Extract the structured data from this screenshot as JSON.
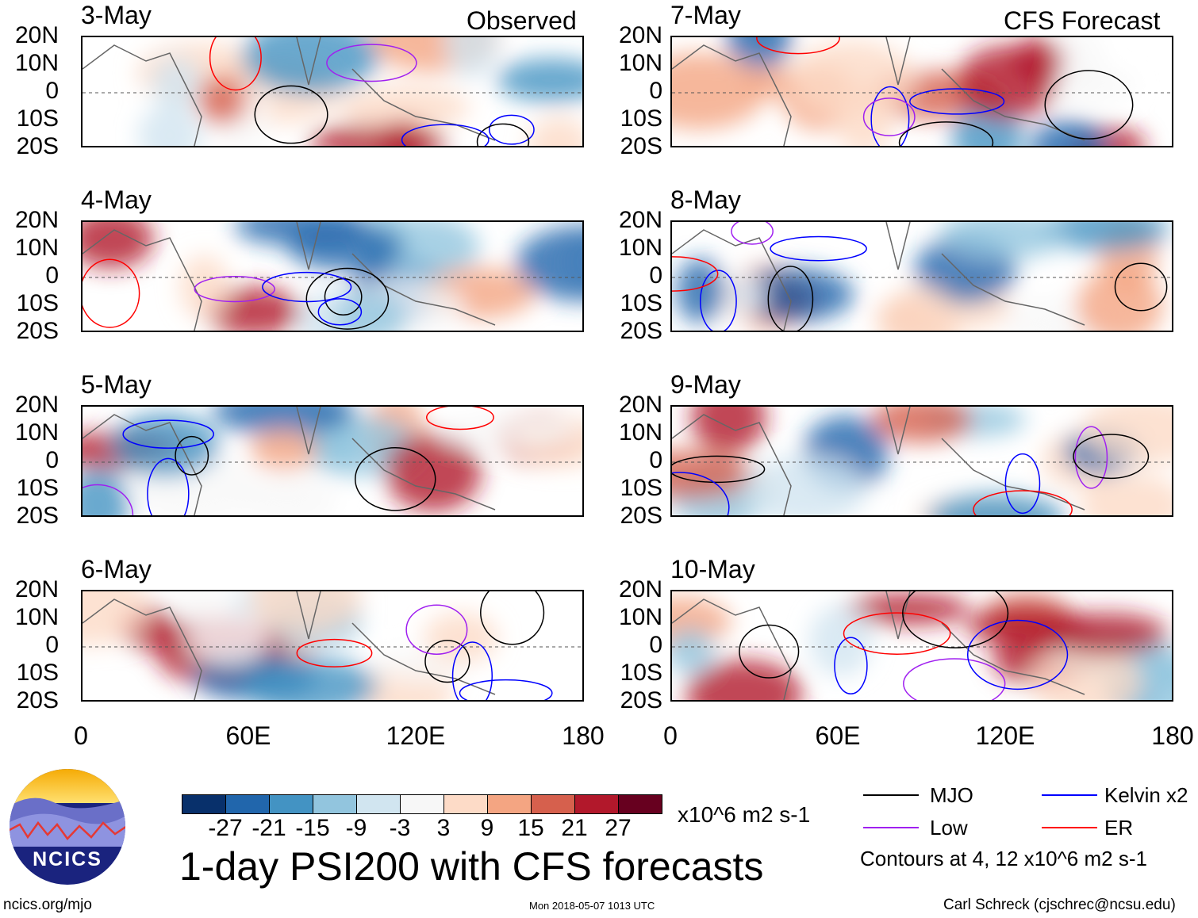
{
  "left_header": "Observed",
  "right_header": "CFS Forecast",
  "chart_data": {
    "type": "heatmap",
    "title": "1-day PSI200 with CFS forecasts",
    "variable": "PSI200 anomaly",
    "units": "x10^6 m2 s-1",
    "ylim": [
      -20,
      20
    ],
    "xlim": [
      0,
      180
    ],
    "yticks": [
      "20N",
      "10N",
      "0",
      "10S",
      "20S"
    ],
    "xticks": [
      "0",
      "60E",
      "120E",
      "180"
    ],
    "panels": [
      {
        "date": "3-May",
        "type": "Observed"
      },
      {
        "date": "4-May",
        "type": "Observed"
      },
      {
        "date": "5-May",
        "type": "Observed"
      },
      {
        "date": "6-May",
        "type": "Observed"
      },
      {
        "date": "7-May",
        "type": "CFS Forecast"
      },
      {
        "date": "8-May",
        "type": "CFS Forecast"
      },
      {
        "date": "9-May",
        "type": "CFS Forecast"
      },
      {
        "date": "10-May",
        "type": "CFS Forecast"
      }
    ],
    "colorbar": {
      "labels": [
        "-27",
        "-21",
        "-15",
        "-9",
        "-3",
        "3",
        "9",
        "15",
        "21",
        "27"
      ],
      "colors": [
        "#08306b",
        "#2166ac",
        "#4393c3",
        "#92c5de",
        "#d1e5f0",
        "#f7f7f7",
        "#fddbc7",
        "#f4a582",
        "#d6604d",
        "#b2182b",
        "#67001f"
      ]
    },
    "legend": [
      {
        "label": "MJO",
        "color": "#000000"
      },
      {
        "label": "Kelvin x2",
        "color": "#0000ff"
      },
      {
        "label": "Low",
        "color": "#a020f0"
      },
      {
        "label": "ER",
        "color": "#ff0000"
      }
    ],
    "contour_note": "Contours at 4, 12 x10^6 m2 s-1"
  },
  "footer": {
    "url": "ncics.org/mjo",
    "timestamp": "Mon 2018-05-07 1013 UTC",
    "author": "Carl Schreck (cjschrec@ncsu.edu)",
    "logo_text": "NCICS"
  }
}
